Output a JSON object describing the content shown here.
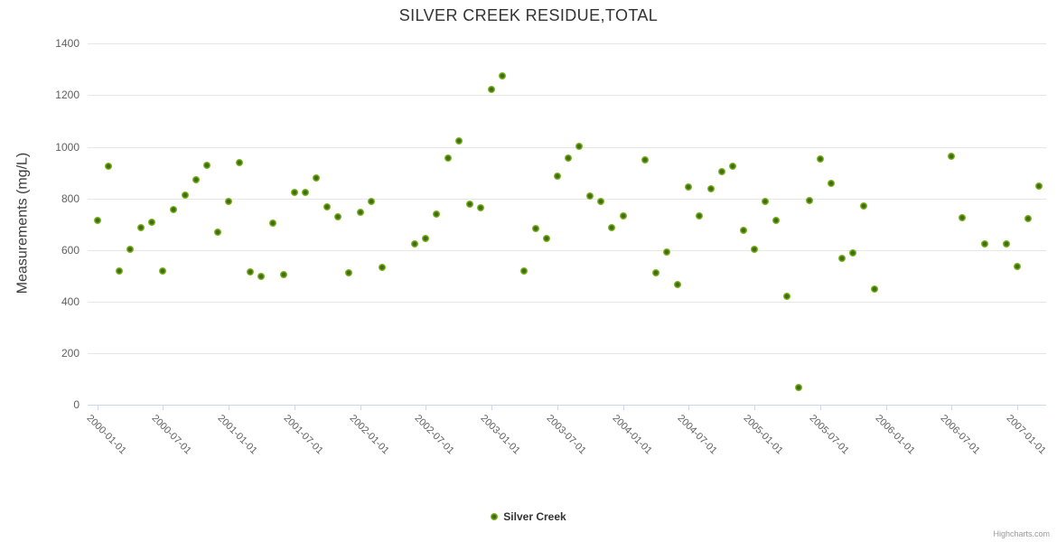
{
  "title": "SILVER CREEK RESIDUE,TOTAL",
  "legend": {
    "label": "Silver Creek"
  },
  "credits": "Highcharts.com",
  "colors": {
    "title": "#333333",
    "axis_title": "#3c3c3c",
    "axis_label": "#606060",
    "grid": "#e6e6e6",
    "axis_line": "#ccd6eb",
    "point_core": "#3f6e10",
    "point_outer": "#82b822",
    "credits": "#999999"
  },
  "chart_data": {
    "type": "scatter",
    "title": "SILVER CREEK RESIDUE,TOTAL",
    "xlabel": "",
    "ylabel": "Measurements (mg/L)",
    "ylim": [
      0,
      1400
    ],
    "y_tick_interval": 200,
    "y_tick_labels": [
      "0",
      "200",
      "400",
      "600",
      "800",
      "1000",
      "1200",
      "1400"
    ],
    "x_tick_labels": [
      "2000-01-01",
      "2000-07-01",
      "2001-01-01",
      "2001-07-01",
      "2002-01-01",
      "2002-07-01",
      "2003-01-01",
      "2003-07-01",
      "2004-01-01",
      "2004-07-01",
      "2005-01-01",
      "2005-07-01",
      "2006-01-01",
      "2006-07-01",
      "2007-01-01"
    ],
    "grid": true,
    "legend_position": "bottom-center",
    "series": [
      {
        "name": "Silver Creek",
        "points": [
          {
            "date": "2000-01",
            "value": 716
          },
          {
            "date": "2000-02",
            "value": 925
          },
          {
            "date": "2000-03",
            "value": 518
          },
          {
            "date": "2000-04",
            "value": 604
          },
          {
            "date": "2000-05",
            "value": 686
          },
          {
            "date": "2000-06",
            "value": 706
          },
          {
            "date": "2000-07",
            "value": 517
          },
          {
            "date": "2000-08",
            "value": 756
          },
          {
            "date": "2000-09",
            "value": 812
          },
          {
            "date": "2000-10",
            "value": 871
          },
          {
            "date": "2000-11",
            "value": 930
          },
          {
            "date": "2000-12",
            "value": 670
          },
          {
            "date": "2001-01",
            "value": 787
          },
          {
            "date": "2001-02",
            "value": 939
          },
          {
            "date": "2001-03",
            "value": 514
          },
          {
            "date": "2001-04",
            "value": 499
          },
          {
            "date": "2001-05",
            "value": 703
          },
          {
            "date": "2001-06",
            "value": 504
          },
          {
            "date": "2001-07",
            "value": 825
          },
          {
            "date": "2001-08",
            "value": 825
          },
          {
            "date": "2001-09",
            "value": 879
          },
          {
            "date": "2001-10",
            "value": 766
          },
          {
            "date": "2001-11",
            "value": 727
          },
          {
            "date": "2001-12",
            "value": 512
          },
          {
            "date": "2002-01",
            "value": 745
          },
          {
            "date": "2002-02",
            "value": 787
          },
          {
            "date": "2002-03",
            "value": 531
          },
          {
            "date": "2002-06",
            "value": 623
          },
          {
            "date": "2002-07",
            "value": 646
          },
          {
            "date": "2002-08",
            "value": 740
          },
          {
            "date": "2002-09",
            "value": 958
          },
          {
            "date": "2002-10",
            "value": 1024
          },
          {
            "date": "2002-11",
            "value": 777
          },
          {
            "date": "2002-12",
            "value": 762
          },
          {
            "date": "2003-01",
            "value": 1224
          },
          {
            "date": "2003-02",
            "value": 1274
          },
          {
            "date": "2003-04",
            "value": 520
          },
          {
            "date": "2003-05",
            "value": 682
          },
          {
            "date": "2003-06",
            "value": 645
          },
          {
            "date": "2003-07",
            "value": 888
          },
          {
            "date": "2003-08",
            "value": 956
          },
          {
            "date": "2003-09",
            "value": 1003
          },
          {
            "date": "2003-10",
            "value": 810
          },
          {
            "date": "2003-11",
            "value": 788
          },
          {
            "date": "2003-12",
            "value": 687
          },
          {
            "date": "2004-01",
            "value": 733
          },
          {
            "date": "2004-03",
            "value": 950
          },
          {
            "date": "2004-04",
            "value": 510
          },
          {
            "date": "2004-05",
            "value": 593
          },
          {
            "date": "2004-06",
            "value": 465
          },
          {
            "date": "2004-07",
            "value": 846
          },
          {
            "date": "2004-08",
            "value": 733
          },
          {
            "date": "2004-09",
            "value": 838
          },
          {
            "date": "2004-10",
            "value": 905
          },
          {
            "date": "2004-11",
            "value": 926
          },
          {
            "date": "2004-12",
            "value": 675
          },
          {
            "date": "2005-01",
            "value": 604
          },
          {
            "date": "2005-02",
            "value": 788
          },
          {
            "date": "2005-03",
            "value": 716
          },
          {
            "date": "2005-04",
            "value": 422
          },
          {
            "date": "2005-05",
            "value": 65
          },
          {
            "date": "2005-06",
            "value": 793
          },
          {
            "date": "2005-07",
            "value": 953
          },
          {
            "date": "2005-08",
            "value": 857
          },
          {
            "date": "2005-09",
            "value": 568
          },
          {
            "date": "2005-10",
            "value": 588
          },
          {
            "date": "2005-11",
            "value": 770
          },
          {
            "date": "2005-12",
            "value": 449
          },
          {
            "date": "2006-07",
            "value": 965
          },
          {
            "date": "2006-08",
            "value": 724
          },
          {
            "date": "2006-10",
            "value": 624
          },
          {
            "date": "2006-12",
            "value": 622
          },
          {
            "date": "2007-01",
            "value": 535
          },
          {
            "date": "2007-02",
            "value": 721
          },
          {
            "date": "2007-03",
            "value": 848
          }
        ]
      }
    ]
  }
}
